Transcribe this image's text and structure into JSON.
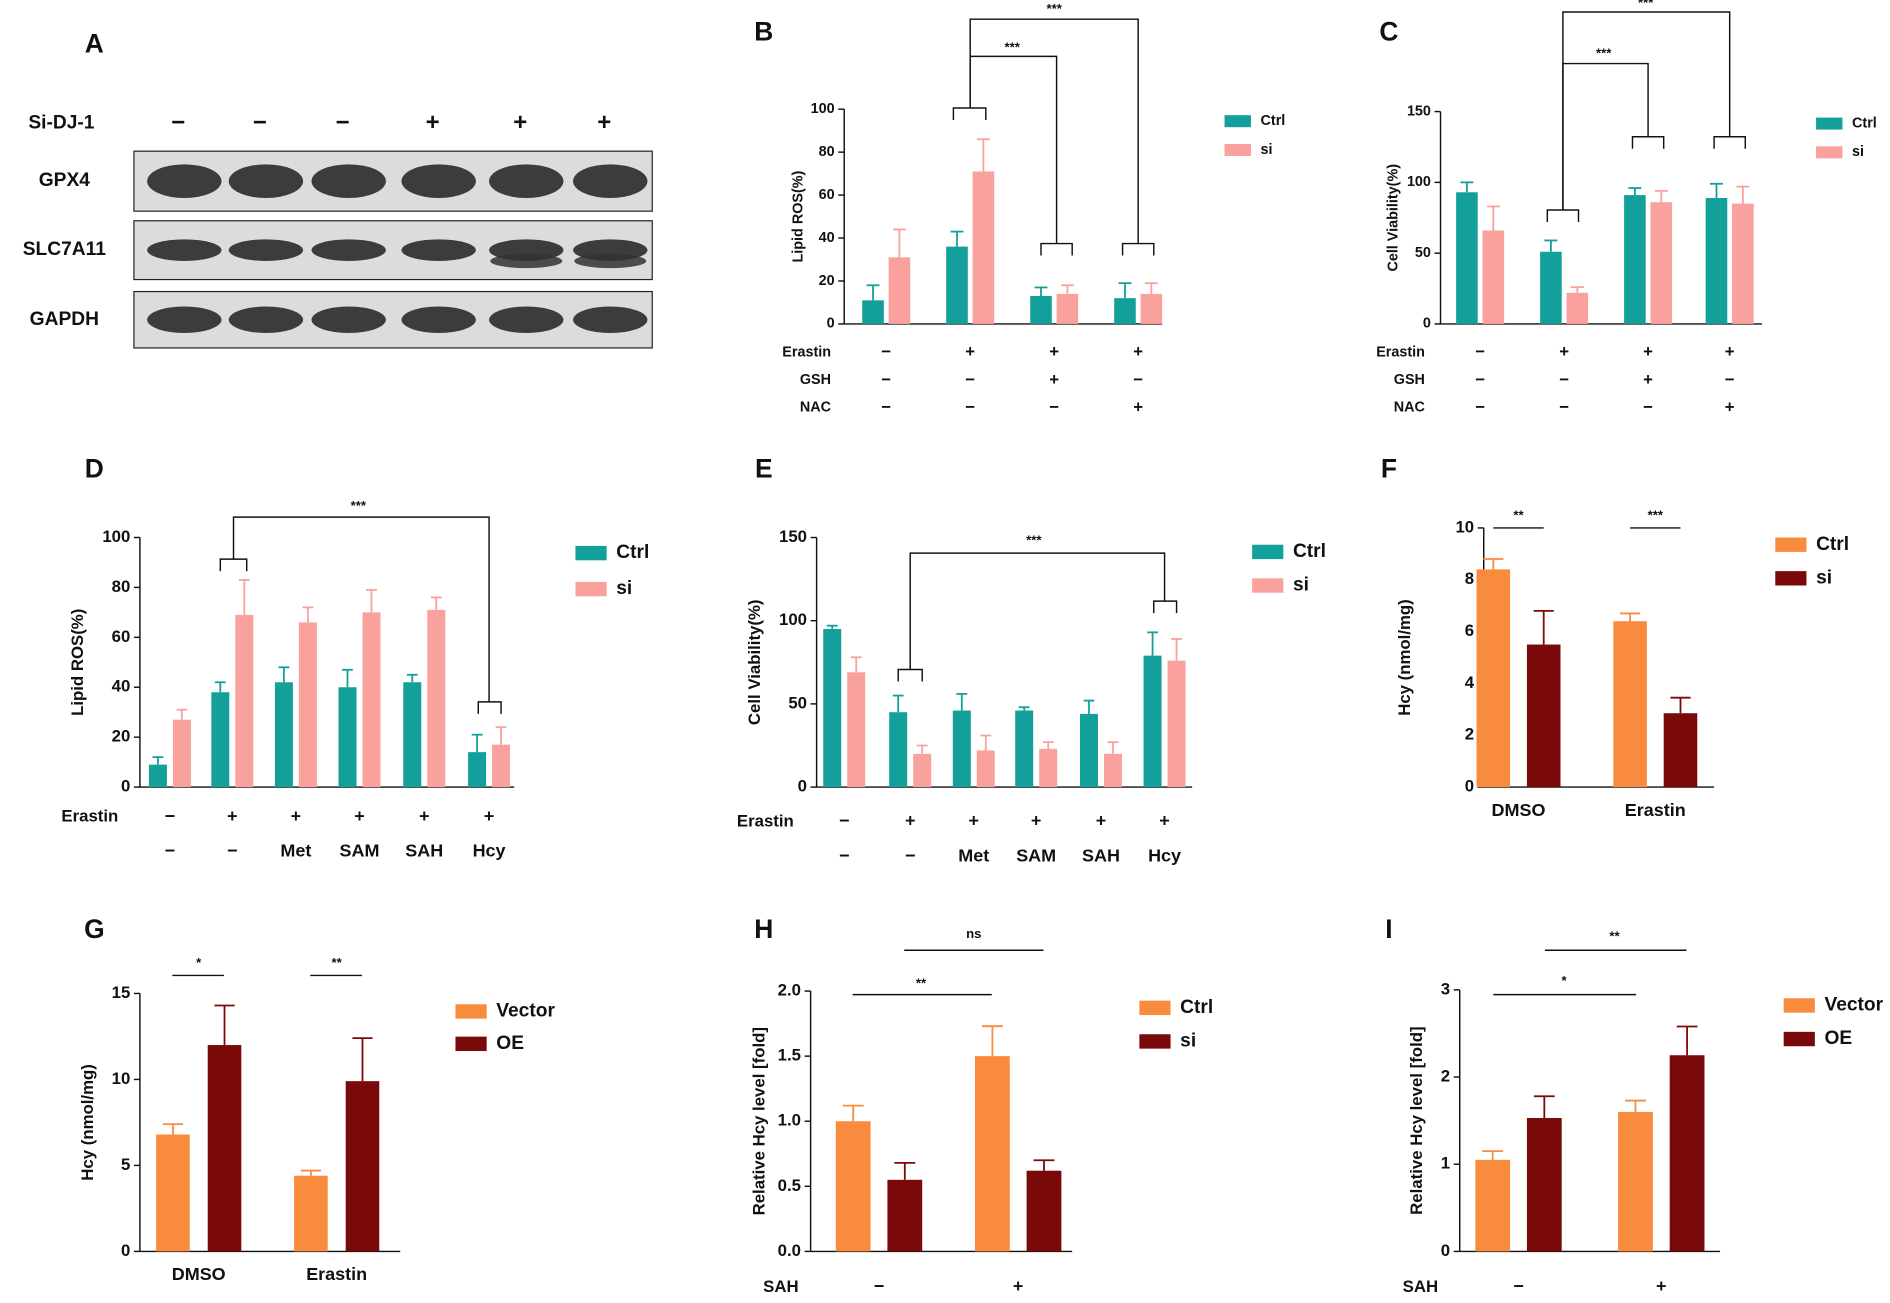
{
  "chart_data": [
    {
      "type": "blot",
      "panel": "A",
      "conditions": [
        {
          "label": "Si-DJ-1",
          "values": [
            "−",
            "−",
            "−",
            "+",
            "+",
            "+"
          ]
        }
      ],
      "rows": [
        "GPX4",
        "SLC7A11",
        "GAPDH"
      ]
    },
    {
      "type": "bar",
      "panel": "B",
      "ylabel": "Lipid ROS(%)",
      "ylim": [
        0,
        100
      ],
      "yticks": [
        0,
        20,
        40,
        60,
        80,
        100
      ],
      "series": [
        {
          "name": "Ctrl",
          "color": "#14a09a",
          "values": [
            11,
            36,
            13,
            12
          ],
          "errors": [
            7,
            7,
            4,
            7
          ]
        },
        {
          "name": "si",
          "color": "#f8a19d",
          "values": [
            31,
            71,
            14,
            14
          ],
          "errors": [
            13,
            15,
            4,
            5
          ]
        }
      ],
      "conditions": [
        {
          "label": "Erastin",
          "values": [
            "−",
            "+",
            "+",
            "+"
          ]
        },
        {
          "label": "GSH",
          "values": [
            "−",
            "−",
            "+",
            "−"
          ]
        },
        {
          "label": "NAC",
          "values": [
            "−",
            "−",
            "−",
            "+"
          ]
        }
      ],
      "annotations": [
        "***",
        "***"
      ]
    },
    {
      "type": "bar",
      "panel": "C",
      "ylabel": "Cell Viability(%)",
      "ylim": [
        0,
        150
      ],
      "yticks": [
        0,
        50,
        100,
        150
      ],
      "series": [
        {
          "name": "Ctrl",
          "color": "#14a09a",
          "values": [
            93,
            51,
            91,
            89
          ],
          "errors": [
            7,
            8,
            5,
            10
          ]
        },
        {
          "name": "si",
          "color": "#f8a19d",
          "values": [
            66,
            22,
            86,
            85
          ],
          "errors": [
            17,
            4,
            8,
            12
          ]
        }
      ],
      "conditions": [
        {
          "label": "Erastin",
          "values": [
            "−",
            "+",
            "+",
            "+"
          ]
        },
        {
          "label": "GSH",
          "values": [
            "−",
            "−",
            "+",
            "−"
          ]
        },
        {
          "label": "NAC",
          "values": [
            "−",
            "−",
            "−",
            "+"
          ]
        }
      ],
      "annotations": [
        "***",
        "***"
      ]
    },
    {
      "type": "bar",
      "panel": "D",
      "ylabel": "Lipid ROS(%)",
      "ylim": [
        0,
        100
      ],
      "yticks": [
        0,
        20,
        40,
        60,
        80,
        100
      ],
      "series": [
        {
          "name": "Ctrl",
          "color": "#14a09a",
          "values": [
            9,
            38,
            42,
            40,
            42,
            14
          ],
          "errors": [
            3,
            4,
            6,
            7,
            3,
            7
          ]
        },
        {
          "name": "si",
          "color": "#f8a19d",
          "values": [
            27,
            69,
            66,
            70,
            71,
            17
          ],
          "errors": [
            4,
            14,
            6,
            9,
            5,
            7
          ]
        }
      ],
      "conditions": [
        {
          "label": "Erastin",
          "values": [
            "−",
            "+",
            "+",
            "+",
            "+",
            "+"
          ]
        },
        {
          "values": [
            "−",
            "−",
            "Met",
            "SAM",
            "SAH",
            "Hcy"
          ]
        }
      ],
      "annotations": [
        "***"
      ]
    },
    {
      "type": "bar",
      "panel": "E",
      "ylabel": "Cell Viability(%)",
      "ylim": [
        0,
        150
      ],
      "yticks": [
        0,
        50,
        100,
        150
      ],
      "series": [
        {
          "name": "Ctrl",
          "color": "#14a09a",
          "values": [
            95,
            45,
            46,
            46,
            44,
            79
          ],
          "errors": [
            2,
            10,
            10,
            2,
            8,
            14
          ]
        },
        {
          "name": "si",
          "color": "#f8a19d",
          "values": [
            69,
            20,
            22,
            23,
            20,
            76
          ],
          "errors": [
            9,
            5,
            9,
            4,
            7,
            13
          ]
        }
      ],
      "conditions": [
        {
          "label": "Erastin",
          "values": [
            "−",
            "+",
            "+",
            "+",
            "+",
            "+"
          ]
        },
        {
          "values": [
            "−",
            "−",
            "Met",
            "SAM",
            "SAH",
            "Hcy"
          ]
        }
      ],
      "annotations": [
        "***"
      ]
    },
    {
      "type": "bar",
      "panel": "F",
      "ylabel": "Hcy (nmol/mg)",
      "ylim": [
        0,
        10
      ],
      "yticks": [
        0,
        2,
        4,
        6,
        8,
        10
      ],
      "categories": [
        "DMSO",
        "Erastin"
      ],
      "series": [
        {
          "name": "Ctrl",
          "color": "#f98b3e",
          "values": [
            8.4,
            6.4
          ],
          "errors": [
            0.4,
            0.3
          ]
        },
        {
          "name": "si",
          "color": "#7a0a0a",
          "values": [
            5.5,
            2.85
          ],
          "errors": [
            1.3,
            0.6
          ]
        }
      ],
      "annotations": [
        "**",
        "***"
      ]
    },
    {
      "type": "bar",
      "panel": "G",
      "ylabel": "Hcy (nmol/mg)",
      "ylim": [
        0,
        15
      ],
      "yticks": [
        0,
        5,
        10,
        15
      ],
      "categories": [
        "DMSO",
        "Erastin"
      ],
      "series": [
        {
          "name": "Vector",
          "color": "#f98b3e",
          "values": [
            6.8,
            4.4
          ],
          "errors": [
            0.6,
            0.3
          ]
        },
        {
          "name": "OE",
          "color": "#7a0a0a",
          "values": [
            12,
            9.9
          ],
          "errors": [
            2.3,
            2.5
          ]
        }
      ],
      "annotations": [
        "*",
        "**"
      ]
    },
    {
      "type": "bar",
      "panel": "H",
      "ylabel": "Relative Hcy level [fold]",
      "ylim": [
        0,
        2
      ],
      "yticks": [
        {
          "value": 0,
          "label": "0.0"
        },
        {
          "value": 0.5,
          "label": "0.5"
        },
        {
          "value": 1,
          "label": "1.0"
        },
        {
          "value": 1.5,
          "label": "1.5"
        },
        {
          "value": 2,
          "label": "2.0"
        }
      ],
      "series": [
        {
          "name": "Ctrl",
          "color": "#f98b3e",
          "values": [
            1.0,
            1.5
          ],
          "errors": [
            0.12,
            0.23
          ]
        },
        {
          "name": "si",
          "color": "#7a0a0a",
          "values": [
            0.55,
            0.62
          ],
          "errors": [
            0.13,
            0.08
          ]
        }
      ],
      "conditions": [
        {
          "label": "SAH",
          "values": [
            "−",
            "+"
          ]
        }
      ],
      "annotations": [
        "ns",
        "**"
      ]
    },
    {
      "type": "bar",
      "panel": "I",
      "ylabel": "Relative Hcy level [fold]",
      "ylim": [
        0,
        3
      ],
      "yticks": [
        0,
        1,
        2,
        3
      ],
      "series": [
        {
          "name": "Vector",
          "color": "#f98b3e",
          "values": [
            1.05,
            1.6
          ],
          "errors": [
            0.1,
            0.13
          ]
        },
        {
          "name": "OE",
          "color": "#7a0a0a",
          "values": [
            1.53,
            2.25
          ],
          "errors": [
            0.25,
            0.33
          ]
        }
      ],
      "conditions": [
        {
          "label": "SAH",
          "values": [
            "−",
            "+"
          ]
        }
      ],
      "annotations": [
        "**",
        "*"
      ]
    }
  ]
}
